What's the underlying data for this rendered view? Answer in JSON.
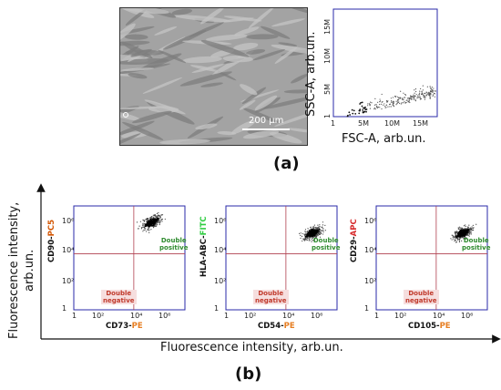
{
  "panel_a": {
    "tag": "(a)",
    "micrograph": {
      "scalebar_label": "200 µm"
    },
    "scatter": {
      "xlabel": "FSC-A, arb.un.",
      "ylabel": "SSC-A, arb.un.",
      "x_ticks": [
        "1",
        "5M",
        "10M",
        "15M"
      ],
      "y_ticks": [
        "1",
        "5M",
        "10M",
        "15M"
      ]
    }
  },
  "panel_b": {
    "tag": "(b)",
    "shared_xlabel": "Fluorescence intensity, arb.un.",
    "shared_ylabel_line1": "Fluorescence intensity,",
    "shared_ylabel_line2": "arb.un.",
    "log_ticks_x": [
      "1",
      "10²",
      "10⁴",
      "10⁶"
    ],
    "log_ticks_y": [
      "1",
      "10²",
      "10⁴",
      "10⁶"
    ],
    "quadrant_positive_line1": "Double",
    "quadrant_positive_line2": "positive",
    "quadrant_negative_line1": "Double",
    "quadrant_negative_line2": "negative",
    "colors": {
      "PE": "#e67e22",
      "PC5": "#d35400",
      "FITC": "#2ecc40",
      "APC": "#d62728",
      "positive": "#2e8b2e",
      "negative": "#c0392b",
      "gate": "#b04050"
    },
    "plots": [
      {
        "y_marker": "CD90-",
        "y_fluor": "PC5",
        "x_marker": "CD73-",
        "x_fluor": "PE",
        "negative_label_shown": true
      },
      {
        "y_marker": "HLA-ABC-",
        "y_fluor": "FITC",
        "x_marker": "CD54-",
        "x_fluor": "PE",
        "negative_label_shown": true
      },
      {
        "y_marker": "CD29-",
        "y_fluor": "APC",
        "x_marker": "CD105-",
        "x_fluor": "PE",
        "negative_label_shown": true
      }
    ]
  }
}
